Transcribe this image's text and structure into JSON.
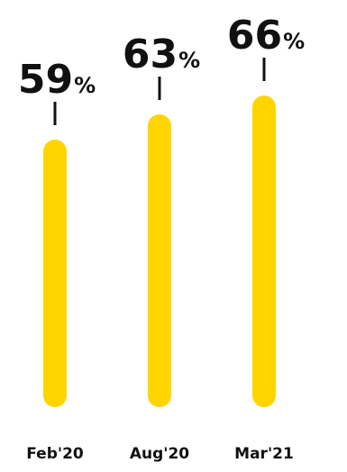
{
  "chart_data": {
    "type": "bar",
    "categories": [
      "Feb'20",
      "Aug'20",
      "Mar'21"
    ],
    "values": [
      59,
      63,
      66
    ],
    "value_labels": [
      "59",
      "63",
      "66"
    ],
    "unit": "%",
    "bar_color": "#FFD400",
    "title": "",
    "xlabel": "",
    "ylabel": ""
  }
}
